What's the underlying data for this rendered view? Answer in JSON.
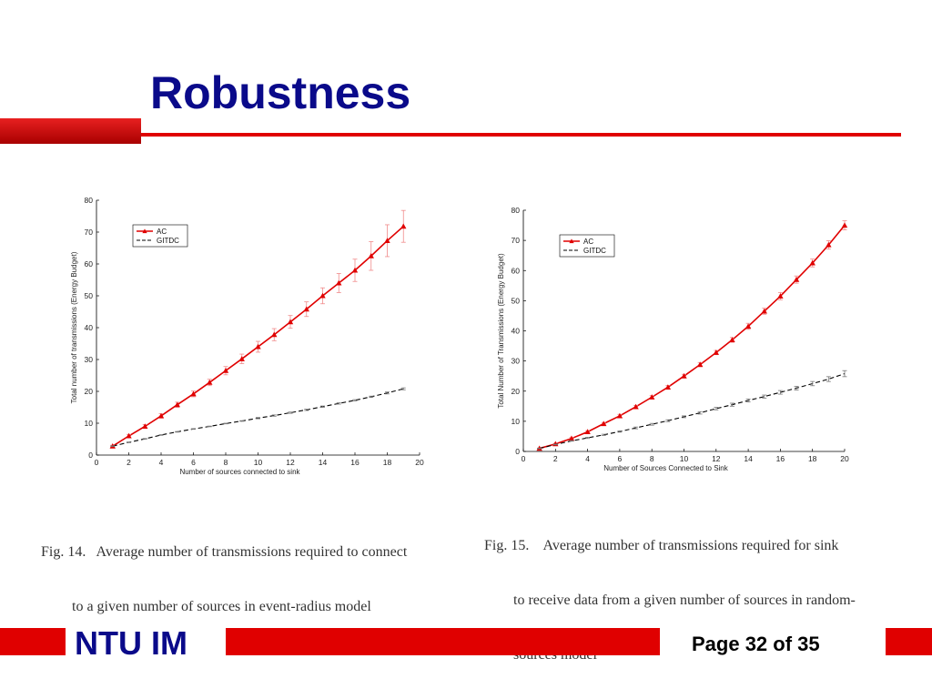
{
  "slide": {
    "title": "Robustness",
    "footer_brand": "NTU IM",
    "footer_page": "Page 32 of 35"
  },
  "colors": {
    "accent": "#e00000",
    "title": "#0a0a8a",
    "ac_series": "#e00000",
    "gitdc_series": "#000000"
  },
  "captions": {
    "fig14": [
      "Fig. 14.   Average number of transmissions required to connect",
      "to a given number of sources in event-radius model"
    ],
    "fig15": [
      "Fig. 15.    Average number of transmissions required for sink",
      "to receive data from a given number of sources in random-",
      "sources model"
    ]
  },
  "chart_data": [
    {
      "type": "line",
      "title": "",
      "xlabel": "Number of sources connected to sink",
      "ylabel": "Total number of transmissions (Energy Budget)",
      "xlim": [
        0,
        20
      ],
      "ylim": [
        0,
        80
      ],
      "xticks": [
        "0",
        "2",
        "4",
        "6",
        "8",
        "10",
        "12",
        "14",
        "16",
        "18",
        "20"
      ],
      "yticks": [
        "0",
        "10",
        "20",
        "30",
        "40",
        "50",
        "60",
        "70",
        "80"
      ],
      "legend": "top-left",
      "x": [
        1,
        2,
        3,
        4,
        5,
        6,
        7,
        8,
        9,
        10,
        11,
        12,
        13,
        14,
        15,
        16,
        17,
        18,
        19
      ],
      "series": [
        {
          "name": "AC",
          "values": [
            2.8,
            6.0,
            9.0,
            12.3,
            15.8,
            19.2,
            22.8,
            26.5,
            30.2,
            34.0,
            37.8,
            41.8,
            45.8,
            50.0,
            54.0,
            58.0,
            62.5,
            67.3,
            71.8
          ],
          "errors": [
            0.3,
            0.5,
            0.6,
            0.7,
            0.8,
            0.9,
            1.0,
            1.3,
            1.5,
            1.7,
            1.9,
            2.0,
            2.3,
            2.5,
            3.0,
            3.5,
            4.5,
            5.0,
            5.0
          ]
        },
        {
          "name": "GITDC",
          "values": [
            2.8,
            4.0,
            5.1,
            6.3,
            7.3,
            8.2,
            9.0,
            9.9,
            10.7,
            11.6,
            12.4,
            13.3,
            14.2,
            15.2,
            16.2,
            17.2,
            18.3,
            19.5,
            20.8
          ],
          "errors": [
            0.1,
            0.1,
            0.1,
            0.1,
            0.1,
            0.1,
            0.1,
            0.1,
            0.1,
            0.2,
            0.2,
            0.2,
            0.2,
            0.2,
            0.2,
            0.2,
            0.2,
            0.3,
            0.3
          ]
        }
      ]
    },
    {
      "type": "line",
      "title": "",
      "xlabel": "Number of Sources Connected to Sink",
      "ylabel": "Total Number of Transmissions (Energy Budget)",
      "xlim": [
        0,
        20
      ],
      "ylim": [
        0,
        80
      ],
      "xticks": [
        "0",
        "2",
        "4",
        "6",
        "8",
        "10",
        "12",
        "14",
        "16",
        "18",
        "20"
      ],
      "yticks": [
        "0",
        "10",
        "20",
        "30",
        "40",
        "50",
        "60",
        "70",
        "80"
      ],
      "legend": "top-left",
      "x": [
        1,
        2,
        3,
        4,
        5,
        6,
        7,
        8,
        9,
        10,
        11,
        12,
        13,
        14,
        15,
        16,
        17,
        18,
        19,
        20
      ],
      "series": [
        {
          "name": "AC",
          "values": [
            1.0,
            2.5,
            4.3,
            6.5,
            9.2,
            11.8,
            14.8,
            18.0,
            21.3,
            25.0,
            28.8,
            32.8,
            37.0,
            41.5,
            46.5,
            51.5,
            57.0,
            62.5,
            68.5,
            75.0
          ],
          "errors": [
            0.1,
            0.2,
            0.3,
            0.4,
            0.4,
            0.5,
            0.5,
            0.5,
            0.6,
            0.6,
            0.7,
            0.7,
            0.8,
            1.0,
            1.0,
            1.2,
            1.2,
            1.3,
            1.4,
            1.5
          ]
        },
        {
          "name": "GITDC",
          "values": [
            1.0,
            2.3,
            3.5,
            4.5,
            5.5,
            6.6,
            7.8,
            9.0,
            10.2,
            11.5,
            12.8,
            14.2,
            15.5,
            16.9,
            18.2,
            19.6,
            21.0,
            22.5,
            24.0,
            25.8
          ],
          "errors": [
            0.1,
            0.1,
            0.1,
            0.2,
            0.2,
            0.2,
            0.3,
            0.3,
            0.3,
            0.3,
            0.4,
            0.4,
            0.5,
            0.5,
            0.5,
            0.6,
            0.6,
            0.7,
            0.8,
            1.0
          ]
        }
      ]
    }
  ]
}
